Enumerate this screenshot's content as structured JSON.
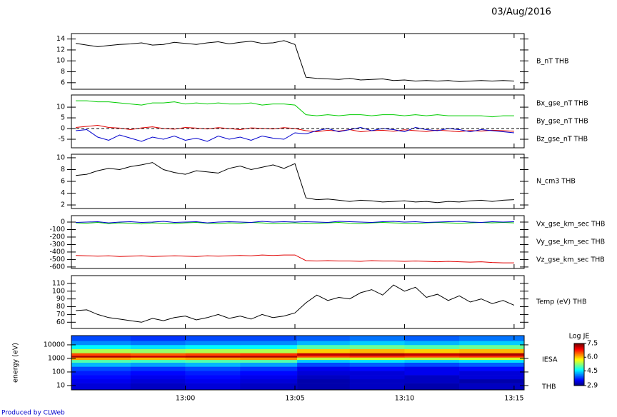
{
  "date": "03/Aug/2016",
  "credit": "Produced by CLWeb",
  "chart_data": [
    {
      "type": "line",
      "xlim": [
        774.8,
        795.46
      ],
      "xticks": [
        {
          "value": 780,
          "label": "13:00"
        },
        {
          "value": 785,
          "label": "13:05"
        },
        {
          "value": 790,
          "label": "13:10"
        },
        {
          "value": 795,
          "label": "13:15"
        }
      ],
      "x": [
        775,
        775.5,
        776,
        776.5,
        777,
        777.5,
        778,
        778.5,
        779,
        779.5,
        780,
        780.5,
        781,
        781.5,
        782,
        782.5,
        783,
        783.5,
        784,
        784.5,
        785,
        785.5,
        786,
        786.5,
        787,
        787.5,
        788,
        788.5,
        789,
        789.5,
        790,
        790.5,
        791,
        791.5,
        792,
        792.5,
        793,
        793.5,
        794,
        794.5,
        795
      ],
      "ylim": [
        4.8,
        15
      ],
      "yticks": [
        6,
        8,
        10,
        12,
        14
      ],
      "series": [
        {
          "name": "B_nT THB",
          "color": "#000000",
          "values": [
            13.2,
            12.9,
            12.6,
            12.8,
            13.0,
            13.1,
            13.3,
            12.9,
            13.0,
            13.4,
            13.2,
            13.0,
            13.3,
            13.5,
            13.1,
            13.4,
            13.6,
            13.2,
            13.3,
            13.7,
            13.0,
            7.0,
            6.8,
            6.7,
            6.6,
            6.8,
            6.5,
            6.6,
            6.7,
            6.4,
            6.5,
            6.3,
            6.4,
            6.3,
            6.4,
            6.2,
            6.3,
            6.4,
            6.3,
            6.4,
            6.3
          ]
        }
      ]
    },
    {
      "type": "line",
      "xlim": [
        774.8,
        795.46
      ],
      "xticks": [
        {
          "value": 780,
          "label": "13:00"
        },
        {
          "value": 785,
          "label": "13:05"
        },
        {
          "value": 790,
          "label": "13:10"
        },
        {
          "value": 795,
          "label": "13:15"
        }
      ],
      "x": [
        775,
        775.5,
        776,
        776.5,
        777,
        777.5,
        778,
        778.5,
        779,
        779.5,
        780,
        780.5,
        781,
        781.5,
        782,
        782.5,
        783,
        783.5,
        784,
        784.5,
        785,
        785.5,
        786,
        786.5,
        787,
        787.5,
        788,
        788.5,
        789,
        789.5,
        790,
        790.5,
        791,
        791.5,
        792,
        792.5,
        793,
        793.5,
        794,
        794.5,
        795
      ],
      "ylim": [
        -9,
        15.7
      ],
      "yticks": [
        -5,
        0,
        5,
        10
      ],
      "hline": 0,
      "series": [
        {
          "name": "Bx_gse_nT THB",
          "color": "#e00000",
          "values": [
            0.5,
            1.0,
            1.5,
            0.5,
            0.2,
            -0.5,
            0.3,
            0.8,
            0.0,
            -0.3,
            0.5,
            0.2,
            -0.2,
            0.4,
            0.0,
            -0.5,
            0.3,
            0.1,
            -0.2,
            0.4,
            0.0,
            -1.0,
            -1.5,
            -0.8,
            -1.2,
            -0.5,
            -1.5,
            -1.0,
            -0.8,
            -1.3,
            -0.6,
            -1.0,
            -1.4,
            -0.7,
            -1.1,
            -1.5,
            -0.9,
            -1.2,
            -0.8,
            -1.0,
            -1.3
          ]
        },
        {
          "name": "By_gse_nT THB",
          "color": "#00cc00",
          "values": [
            13.0,
            13.0,
            12.5,
            12.5,
            12.0,
            11.5,
            11.0,
            12.0,
            12.0,
            12.5,
            11.5,
            12.0,
            11.5,
            12.0,
            11.5,
            11.5,
            12.0,
            11.0,
            11.5,
            11.5,
            11.0,
            6.5,
            6.0,
            6.5,
            6.0,
            6.5,
            6.5,
            6.0,
            6.5,
            6.5,
            6.0,
            6.5,
            6.0,
            6.5,
            6.0,
            6.0,
            6.0,
            6.0,
            5.5,
            6.0,
            6.0
          ]
        },
        {
          "name": "Bz_gse_nT THB",
          "color": "#0000cc",
          "values": [
            -1.0,
            -0.5,
            -4.0,
            -5.5,
            -3.0,
            -4.5,
            -6.0,
            -4.0,
            -5.0,
            -3.5,
            -5.5,
            -4.5,
            -6.0,
            -3.5,
            -5.0,
            -4.0,
            -5.5,
            -3.5,
            -4.5,
            -5.0,
            -2.0,
            -2.5,
            -1.0,
            0.0,
            -1.5,
            -0.5,
            0.5,
            -1.0,
            0.0,
            -0.5,
            -1.5,
            0.5,
            -0.5,
            -1.0,
            0.0,
            -0.5,
            -1.5,
            -0.5,
            -1.0,
            -1.5,
            -2.0
          ]
        }
      ]
    },
    {
      "type": "line",
      "xlim": [
        774.8,
        795.46
      ],
      "xticks": [
        {
          "value": 780,
          "label": "13:00"
        },
        {
          "value": 785,
          "label": "13:05"
        },
        {
          "value": 790,
          "label": "13:10"
        },
        {
          "value": 795,
          "label": "13:15"
        }
      ],
      "x": [
        775,
        775.5,
        776,
        776.5,
        777,
        777.5,
        778,
        778.5,
        779,
        779.5,
        780,
        780.5,
        781,
        781.5,
        782,
        782.5,
        783,
        783.5,
        784,
        784.5,
        785,
        785.5,
        786,
        786.5,
        787,
        787.5,
        788,
        788.5,
        789,
        789.5,
        790,
        790.5,
        791,
        791.5,
        792,
        792.5,
        793,
        793.5,
        794,
        794.5,
        795
      ],
      "ylim": [
        1.4,
        10.6
      ],
      "yticks": [
        2,
        4,
        6,
        8,
        10
      ],
      "series": [
        {
          "name": "N_cm3 THB",
          "color": "#000000",
          "values": [
            7.0,
            7.2,
            7.8,
            8.2,
            8.0,
            8.5,
            8.8,
            9.2,
            8.0,
            7.5,
            7.2,
            7.8,
            7.6,
            7.4,
            8.2,
            8.6,
            8.0,
            8.4,
            8.8,
            8.2,
            9.0,
            3.2,
            2.9,
            3.0,
            2.8,
            2.6,
            2.8,
            2.7,
            2.5,
            2.6,
            2.7,
            2.5,
            2.6,
            2.4,
            2.6,
            2.5,
            2.7,
            2.8,
            2.6,
            2.8,
            2.9
          ]
        }
      ]
    },
    {
      "type": "line",
      "xlim": [
        774.8,
        795.46
      ],
      "xticks": [
        {
          "value": 780,
          "label": "13:00"
        },
        {
          "value": 785,
          "label": "13:05"
        },
        {
          "value": 790,
          "label": "13:10"
        },
        {
          "value": 795,
          "label": "13:15"
        }
      ],
      "x": [
        775,
        775.5,
        776,
        776.5,
        777,
        777.5,
        778,
        778.5,
        779,
        779.5,
        780,
        780.5,
        781,
        781.5,
        782,
        782.5,
        783,
        783.5,
        784,
        784.5,
        785,
        785.5,
        786,
        786.5,
        787,
        787.5,
        788,
        788.5,
        789,
        789.5,
        790,
        790.5,
        791,
        791.5,
        792,
        792.5,
        793,
        793.5,
        794,
        794.5,
        795
      ],
      "ylim": [
        -620,
        86
      ],
      "yticks": [
        -600,
        -500,
        -400,
        -300,
        -200,
        -100,
        0
      ],
      "series": [
        {
          "name": "Vx_gse_km_sec THB",
          "color": "#e00000",
          "values": [
            -445,
            -450,
            -455,
            -450,
            -460,
            -455,
            -450,
            -460,
            -455,
            -450,
            -455,
            -460,
            -450,
            -455,
            -450,
            -445,
            -450,
            -440,
            -445,
            -440,
            -440,
            -515,
            -520,
            -515,
            -520,
            -520,
            -525,
            -515,
            -520,
            -520,
            -525,
            -520,
            -525,
            -530,
            -525,
            -530,
            -535,
            -530,
            -540,
            -545,
            -545
          ]
        },
        {
          "name": "Vy_gse_km_sec THB",
          "color": "#00cc00",
          "values": [
            -10,
            -15,
            -5,
            -20,
            -10,
            -15,
            -25,
            -10,
            -15,
            -20,
            -10,
            -5,
            -15,
            -20,
            -10,
            -15,
            -5,
            -10,
            -20,
            -15,
            -10,
            -20,
            -15,
            -10,
            -5,
            -15,
            -20,
            -10,
            -5,
            -10,
            -15,
            -20,
            -10,
            -5,
            -10,
            -15,
            -10,
            -5,
            -10,
            -5,
            -10
          ]
        },
        {
          "name": "Vz_gse_km_sec THB",
          "color": "#0000cc",
          "values": [
            -5,
            0,
            5,
            -10,
            0,
            5,
            -5,
            0,
            10,
            -5,
            0,
            5,
            -10,
            0,
            5,
            0,
            -5,
            10,
            0,
            5,
            0,
            5,
            0,
            -5,
            10,
            5,
            0,
            -5,
            5,
            10,
            0,
            5,
            -5,
            0,
            5,
            10,
            0,
            -5,
            5,
            0,
            5
          ]
        }
      ]
    },
    {
      "type": "line",
      "xlim": [
        774.8,
        795.46
      ],
      "xticks": [
        {
          "value": 780,
          "label": "13:00"
        },
        {
          "value": 785,
          "label": "13:05"
        },
        {
          "value": 790,
          "label": "13:10"
        },
        {
          "value": 795,
          "label": "13:15"
        }
      ],
      "x": [
        775,
        775.5,
        776,
        776.5,
        777,
        777.5,
        778,
        778.5,
        779,
        779.5,
        780,
        780.5,
        781,
        781.5,
        782,
        782.5,
        783,
        783.5,
        784,
        784.5,
        785,
        785.5,
        786,
        786.5,
        787,
        787.5,
        788,
        788.5,
        789,
        789.5,
        790,
        790.5,
        791,
        791.5,
        792,
        792.5,
        793,
        793.5,
        794,
        794.5,
        795
      ],
      "ylim": [
        52,
        120
      ],
      "yticks": [
        60,
        70,
        80,
        90,
        100,
        110
      ],
      "series": [
        {
          "name": "Temp (eV) THB",
          "color": "#000000",
          "values": [
            75,
            76,
            70,
            66,
            64,
            62,
            60,
            65,
            62,
            66,
            68,
            63,
            66,
            70,
            65,
            68,
            64,
            70,
            66,
            68,
            72,
            85,
            95,
            88,
            92,
            90,
            98,
            102,
            95,
            108,
            100,
            105,
            92,
            96,
            88,
            94,
            86,
            90,
            84,
            88,
            82
          ]
        }
      ]
    },
    {
      "type": "heatmap",
      "xlim": [
        774.8,
        795.46
      ],
      "xticks": [
        {
          "value": 780,
          "label": "13:00"
        },
        {
          "value": 785,
          "label": "13:05"
        },
        {
          "value": 790,
          "label": "13:10"
        },
        {
          "value": 795,
          "label": "13:15"
        }
      ],
      "ylabel": "energy (eV)",
      "log_y": true,
      "ylim": [
        4.8,
        48000
      ],
      "yticks": [
        10,
        100,
        1000,
        10000
      ],
      "labels": [
        "IESA",
        "THB"
      ],
      "x_edges": [
        774.8,
        777.5,
        780,
        782.5,
        785.1,
        787.5,
        790,
        792.5,
        795.46
      ],
      "y_edges": [
        4.8,
        15,
        30,
        60,
        120,
        250,
        500,
        800,
        1200,
        1600,
        2500,
        5000,
        10000,
        20000,
        48000
      ],
      "values": [
        [
          3.3,
          3.2,
          3.3,
          3.2,
          3.1,
          3.2,
          3.1,
          3.2
        ],
        [
          3.4,
          3.3,
          3.4,
          3.3,
          3.1,
          3.2,
          3.2,
          3.1
        ],
        [
          3.5,
          3.4,
          3.5,
          3.4,
          3.2,
          3.3,
          3.2,
          3.3
        ],
        [
          3.6,
          3.5,
          3.6,
          3.5,
          3.3,
          3.3,
          3.4,
          3.3
        ],
        [
          3.8,
          3.7,
          3.8,
          3.7,
          3.4,
          3.5,
          3.4,
          3.5
        ],
        [
          4.3,
          4.2,
          4.3,
          4.2,
          3.8,
          3.9,
          3.8,
          3.9
        ],
        [
          5.0,
          4.9,
          5.0,
          5.0,
          4.4,
          4.5,
          4.4,
          4.5
        ],
        [
          6.2,
          6.1,
          6.2,
          6.3,
          5.5,
          5.6,
          5.5,
          5.6
        ],
        [
          7.3,
          7.2,
          7.3,
          7.3,
          6.6,
          6.7,
          6.6,
          6.7
        ],
        [
          6.6,
          6.5,
          6.6,
          6.7,
          7.2,
          7.3,
          7.2,
          7.3
        ],
        [
          5.4,
          5.3,
          5.4,
          5.4,
          6.0,
          6.1,
          6.0,
          6.1
        ],
        [
          4.6,
          4.5,
          4.6,
          4.6,
          5.0,
          5.1,
          5.0,
          5.1
        ],
        [
          4.1,
          4.0,
          4.1,
          4.1,
          4.3,
          4.4,
          4.3,
          4.4
        ],
        [
          3.8,
          3.7,
          3.8,
          3.8,
          3.9,
          4.0,
          3.9,
          4.0
        ]
      ],
      "colorbar_title": "Log JE",
      "zlim": [
        2.9,
        7.5
      ],
      "zticks": [
        2.9,
        4.5,
        {
          "value": 6,
          "label": "6.0"
        },
        7.5
      ]
    }
  ]
}
